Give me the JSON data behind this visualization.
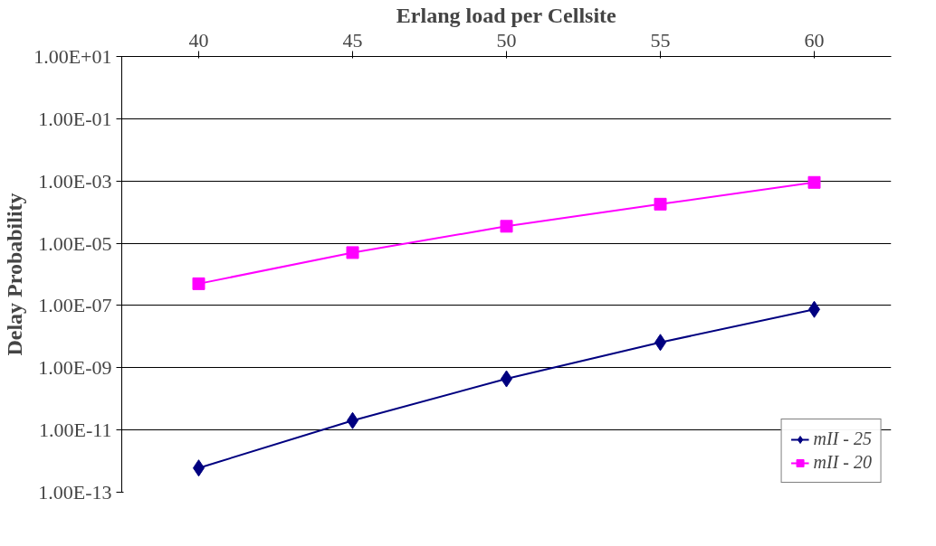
{
  "chart_data": {
    "type": "line",
    "xlabel": "Erlang load per Cellsite",
    "ylabel": "Delay Probability",
    "categories": [
      "40",
      "45",
      "50",
      "55",
      "60"
    ],
    "series": [
      {
        "name": "mII - 25",
        "color": "#000080",
        "marker": "diamond",
        "values": [
          6e-13,
          2e-11,
          4.4e-10,
          6.5e-09,
          7.5e-08
        ]
      },
      {
        "name": "mII - 20",
        "color": "#ff00ff",
        "marker": "square",
        "values": [
          5e-07,
          5e-06,
          3.5e-05,
          0.00018,
          0.0009
        ]
      }
    ],
    "log": true,
    "ylim": [
      1e-13,
      10
    ],
    "yticks": [
      {
        "value": 10,
        "label": "1.00E+01"
      },
      {
        "value": 0.1,
        "label": "1.00E-01"
      },
      {
        "value": 0.001,
        "label": "1.00E-03"
      },
      {
        "value": 1e-05,
        "label": "1.00E-05"
      },
      {
        "value": 1e-07,
        "label": "1.00E-07"
      },
      {
        "value": 1e-09,
        "label": "1.00E-09"
      },
      {
        "value": 1e-11,
        "label": "1.00E-11"
      },
      {
        "value": 1e-13,
        "label": "1.00E-13"
      }
    ],
    "grid": "y",
    "legend": "bottom right",
    "line_style": "solid"
  }
}
